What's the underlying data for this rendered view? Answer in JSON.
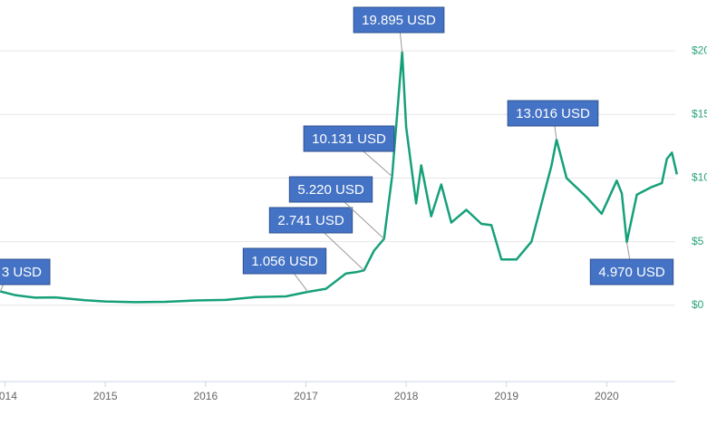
{
  "chart_data": {
    "type": "line",
    "x": [
      2013.95,
      2014.1,
      2014.3,
      2014.5,
      2014.8,
      2015.0,
      2015.3,
      2015.6,
      2015.9,
      2016.2,
      2016.5,
      2016.8,
      2017.02,
      2017.2,
      2017.4,
      2017.5,
      2017.58,
      2017.68,
      2017.78,
      2017.86,
      2017.96,
      2018.0,
      2018.05,
      2018.1,
      2018.15,
      2018.25,
      2018.35,
      2018.45,
      2018.6,
      2018.75,
      2018.85,
      2018.95,
      2019.1,
      2019.25,
      2019.45,
      2019.5,
      2019.6,
      2019.8,
      2019.95,
      2020.1,
      2020.15,
      2020.2,
      2020.3,
      2020.45,
      2020.55,
      2020.6,
      2020.65,
      2020.7
    ],
    "series": [
      {
        "color": "#16a07a",
        "values": [
          1.1,
          0.8,
          0.6,
          0.62,
          0.4,
          0.3,
          0.24,
          0.27,
          0.38,
          0.42,
          0.65,
          0.7,
          1.056,
          1.3,
          2.5,
          2.6,
          2.741,
          4.3,
          5.22,
          10.131,
          19.895,
          14,
          11,
          8,
          11,
          7,
          9.5,
          6.5,
          7.5,
          6.4,
          6.3,
          3.6,
          3.6,
          5,
          11,
          13.016,
          10,
          8.5,
          7.2,
          9.8,
          8.8,
          4.97,
          8.7,
          9.3,
          9.6,
          11.5,
          12,
          10.3
        ]
      }
    ],
    "xlim": [
      2013.95,
      2021.0
    ],
    "xticks": [
      2014,
      2015,
      2016,
      2017,
      2018,
      2019,
      2020
    ],
    "ylim": [
      -6,
      24
    ],
    "yticks": [
      {
        "value": 0,
        "label": "$0"
      },
      {
        "value": 5,
        "label": "$5"
      },
      {
        "value": 10,
        "label": "$10"
      },
      {
        "value": 15,
        "label": "$15"
      },
      {
        "value": 20,
        "label": "$20"
      }
    ],
    "grid": true,
    "annotations": [
      {
        "label": "3 USD",
        "x": 2013.95
      },
      {
        "label": "1.056 USD",
        "value": 1.056,
        "x": 2017.02
      },
      {
        "label": "2.741 USD",
        "value": 2.741,
        "x": 2017.58
      },
      {
        "label": "5.220 USD",
        "value": 5.22,
        "x": 2017.78
      },
      {
        "label": "10.131 USD",
        "value": 10.131,
        "x": 2017.86
      },
      {
        "label": "19.895 USD",
        "value": 19.895,
        "x": 2017.96
      },
      {
        "label": "13.016 USD",
        "value": 13.016,
        "x": 2019.5
      },
      {
        "label": "4.970 USD",
        "value": 4.97,
        "x": 2020.2
      }
    ]
  }
}
